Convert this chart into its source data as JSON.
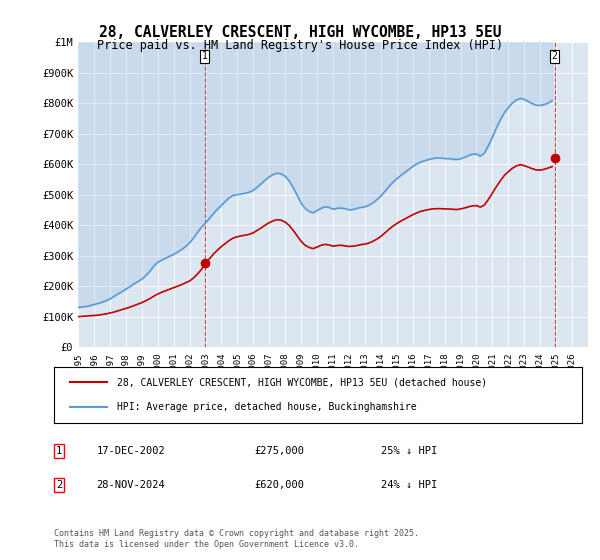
{
  "title_line1": "28, CALVERLEY CRESCENT, HIGH WYCOMBE, HP13 5EU",
  "title_line2": "Price paid vs. HM Land Registry's House Price Index (HPI)",
  "xlabel": "",
  "ylabel": "",
  "ylim": [
    0,
    1000000
  ],
  "xlim_start": 1995,
  "xlim_end": 2027,
  "yticks": [
    0,
    100000,
    200000,
    300000,
    400000,
    500000,
    600000,
    700000,
    800000,
    900000,
    1000000
  ],
  "ytick_labels": [
    "£0",
    "£100K",
    "£200K",
    "£300K",
    "£400K",
    "£500K",
    "£600K",
    "£700K",
    "£800K",
    "£900K",
    "£1M"
  ],
  "hpi_color": "#5b9bd5",
  "price_color": "#c00000",
  "background_color": "#dce6f1",
  "plot_bg_color": "#dce6f1",
  "sale1_date": 2002.96,
  "sale1_price": 275000,
  "sale1_label": "1",
  "sale2_date": 2024.91,
  "sale2_price": 620000,
  "sale2_label": "2",
  "legend_line1": "28, CALVERLEY CRESCENT, HIGH WYCOMBE, HP13 5EU (detached house)",
  "legend_line2": "HPI: Average price, detached house, Buckinghamshire",
  "note1_label": "1",
  "note1_date": "17-DEC-2002",
  "note1_price": "£275,000",
  "note1_hpi": "25% ↓ HPI",
  "note2_label": "2",
  "note2_date": "28-NOV-2024",
  "note2_price": "£620,000",
  "note2_hpi": "24% ↓ HPI",
  "footnote": "Contains HM Land Registry data © Crown copyright and database right 2025.\nThis data is licensed under the Open Government Licence v3.0.",
  "hpi_data_x": [
    1995.0,
    1995.25,
    1995.5,
    1995.75,
    1996.0,
    1996.25,
    1996.5,
    1996.75,
    1997.0,
    1997.25,
    1997.5,
    1997.75,
    1998.0,
    1998.25,
    1998.5,
    1998.75,
    1999.0,
    1999.25,
    1999.5,
    1999.75,
    2000.0,
    2000.25,
    2000.5,
    2000.75,
    2001.0,
    2001.25,
    2001.5,
    2001.75,
    2002.0,
    2002.25,
    2002.5,
    2002.75,
    2003.0,
    2003.25,
    2003.5,
    2003.75,
    2004.0,
    2004.25,
    2004.5,
    2004.75,
    2005.0,
    2005.25,
    2005.5,
    2005.75,
    2006.0,
    2006.25,
    2006.5,
    2006.75,
    2007.0,
    2007.25,
    2007.5,
    2007.75,
    2008.0,
    2008.25,
    2008.5,
    2008.75,
    2009.0,
    2009.25,
    2009.5,
    2009.75,
    2010.0,
    2010.25,
    2010.5,
    2010.75,
    2011.0,
    2011.25,
    2011.5,
    2011.75,
    2012.0,
    2012.25,
    2012.5,
    2012.75,
    2013.0,
    2013.25,
    2013.5,
    2013.75,
    2014.0,
    2014.25,
    2014.5,
    2014.75,
    2015.0,
    2015.25,
    2015.5,
    2015.75,
    2016.0,
    2016.25,
    2016.5,
    2016.75,
    2017.0,
    2017.25,
    2017.5,
    2017.75,
    2018.0,
    2018.25,
    2018.5,
    2018.75,
    2019.0,
    2019.25,
    2019.5,
    2019.75,
    2020.0,
    2020.25,
    2020.5,
    2020.75,
    2021.0,
    2021.25,
    2021.5,
    2021.75,
    2022.0,
    2022.25,
    2022.5,
    2022.75,
    2023.0,
    2023.25,
    2023.5,
    2023.75,
    2024.0,
    2024.25,
    2024.5,
    2024.75
  ],
  "hpi_data_y": [
    130000,
    132000,
    133000,
    136000,
    140000,
    143000,
    147000,
    152000,
    158000,
    166000,
    174000,
    182000,
    190000,
    198000,
    207000,
    215000,
    223000,
    234000,
    248000,
    265000,
    278000,
    285000,
    292000,
    298000,
    304000,
    312000,
    320000,
    330000,
    342000,
    358000,
    376000,
    393000,
    407000,
    422000,
    438000,
    452000,
    465000,
    478000,
    490000,
    498000,
    500000,
    502000,
    505000,
    508000,
    514000,
    524000,
    536000,
    548000,
    558000,
    566000,
    570000,
    568000,
    560000,
    545000,
    523000,
    498000,
    472000,
    455000,
    445000,
    440000,
    448000,
    455000,
    460000,
    458000,
    452000,
    455000,
    456000,
    454000,
    450000,
    451000,
    455000,
    458000,
    460000,
    465000,
    473000,
    483000,
    495000,
    510000,
    526000,
    540000,
    552000,
    562000,
    572000,
    582000,
    592000,
    600000,
    607000,
    611000,
    615000,
    618000,
    620000,
    620000,
    618000,
    618000,
    616000,
    615000,
    617000,
    622000,
    628000,
    632000,
    633000,
    626000,
    636000,
    660000,
    688000,
    718000,
    745000,
    768000,
    785000,
    800000,
    810000,
    815000,
    812000,
    805000,
    798000,
    793000,
    792000,
    795000,
    800000,
    808000
  ],
  "price_data_x": [
    1995.0,
    1995.25,
    1995.5,
    1995.75,
    1996.0,
    1996.25,
    1996.5,
    1996.75,
    1997.0,
    1997.25,
    1997.5,
    1997.75,
    1998.0,
    1998.25,
    1998.5,
    1998.75,
    1999.0,
    1999.25,
    1999.5,
    1999.75,
    2000.0,
    2000.25,
    2000.5,
    2000.75,
    2001.0,
    2001.25,
    2001.5,
    2001.75,
    2002.0,
    2002.25,
    2002.5,
    2002.75,
    2003.0,
    2003.25,
    2003.5,
    2003.75,
    2004.0,
    2004.25,
    2004.5,
    2004.75,
    2005.0,
    2005.25,
    2005.5,
    2005.75,
    2006.0,
    2006.25,
    2006.5,
    2006.75,
    2007.0,
    2007.25,
    2007.5,
    2007.75,
    2008.0,
    2008.25,
    2008.5,
    2008.75,
    2009.0,
    2009.25,
    2009.5,
    2009.75,
    2010.0,
    2010.25,
    2010.5,
    2010.75,
    2011.0,
    2011.25,
    2011.5,
    2011.75,
    2012.0,
    2012.25,
    2012.5,
    2012.75,
    2013.0,
    2013.25,
    2013.5,
    2013.75,
    2014.0,
    2014.25,
    2014.5,
    2014.75,
    2015.0,
    2015.25,
    2015.5,
    2015.75,
    2016.0,
    2016.25,
    2016.5,
    2016.75,
    2017.0,
    2017.25,
    2017.5,
    2017.75,
    2018.0,
    2018.25,
    2018.5,
    2018.75,
    2019.0,
    2019.25,
    2019.5,
    2019.75,
    2020.0,
    2020.25,
    2020.5,
    2020.75,
    2021.0,
    2021.25,
    2021.5,
    2021.75,
    2022.0,
    2022.25,
    2022.5,
    2022.75,
    2023.0,
    2023.25,
    2023.5,
    2023.75,
    2024.0,
    2024.25,
    2024.5,
    2024.75
  ],
  "price_data_y": [
    100000,
    101000,
    102000,
    103000,
    104000,
    105000,
    107000,
    109000,
    112000,
    115000,
    119000,
    123000,
    127000,
    131000,
    136000,
    141000,
    146000,
    152000,
    159000,
    167000,
    174000,
    180000,
    185000,
    190000,
    195000,
    200000,
    205000,
    211000,
    217000,
    227000,
    240000,
    255000,
    275000,
    290000,
    305000,
    318000,
    330000,
    340000,
    350000,
    358000,
    362000,
    365000,
    367000,
    370000,
    375000,
    383000,
    391000,
    400000,
    408000,
    414000,
    418000,
    416000,
    410000,
    399000,
    383000,
    365000,
    347000,
    334000,
    327000,
    323000,
    328000,
    334000,
    337000,
    335000,
    331000,
    333000,
    334000,
    332000,
    330000,
    331000,
    333000,
    336000,
    338000,
    341000,
    347000,
    354000,
    363000,
    374000,
    386000,
    396000,
    405000,
    413000,
    420000,
    427000,
    434000,
    440000,
    445000,
    448000,
    451000,
    453000,
    454000,
    454000,
    453000,
    453000,
    452000,
    451000,
    453000,
    456000,
    460000,
    463000,
    464000,
    459000,
    466000,
    484000,
    505000,
    526000,
    545000,
    563000,
    575000,
    586000,
    594000,
    598000,
    595000,
    590000,
    585000,
    581000,
    580000,
    583000,
    587000,
    592000
  ]
}
